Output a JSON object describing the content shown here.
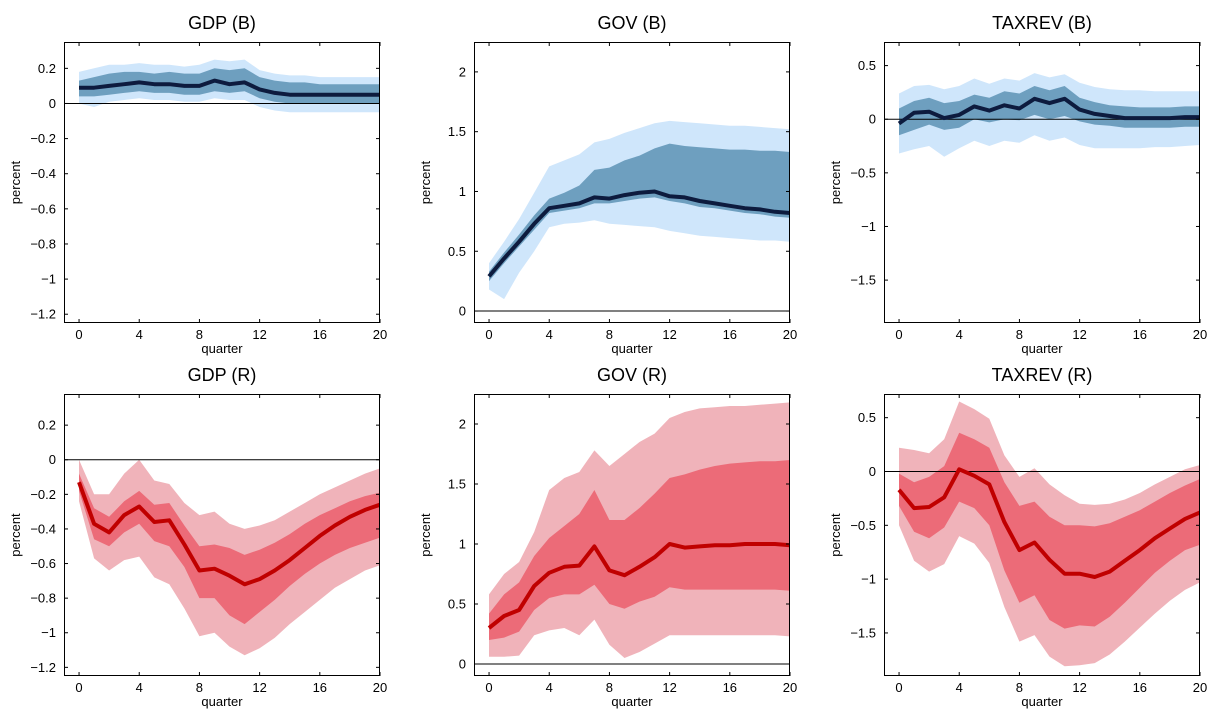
{
  "colors": {
    "blue_outer": "#cfe6fb",
    "blue_inner": "#6e9fbf",
    "blue_line": "#0d1b3e",
    "red_outer": "#f0b3ba",
    "red_inner": "#ec6b78",
    "red_line": "#c00000"
  },
  "chart_data": [
    {
      "type": "line",
      "title": "GDP (B)",
      "xlabel": "quarter",
      "ylabel": "percent",
      "xlim": [
        -1,
        20
      ],
      "ylim": [
        -1.25,
        0.35
      ],
      "xticks": [
        0,
        4,
        8,
        12,
        16,
        20
      ],
      "yticks": [
        -1.2,
        -1,
        -0.8,
        -0.6,
        -0.4,
        -0.2,
        0,
        0.2
      ],
      "ytick_labels": [
        "−1.2",
        "−1",
        "−0.8",
        "−0.6",
        "−0.4",
        "−0.2",
        "0",
        "0.2"
      ],
      "scheme": "blue",
      "x": [
        0,
        1,
        2,
        3,
        4,
        5,
        6,
        7,
        8,
        9,
        10,
        11,
        12,
        13,
        14,
        15,
        16,
        17,
        18,
        19,
        20
      ],
      "median": [
        0.09,
        0.09,
        0.1,
        0.11,
        0.12,
        0.11,
        0.11,
        0.1,
        0.1,
        0.13,
        0.11,
        0.12,
        0.08,
        0.06,
        0.05,
        0.05,
        0.05,
        0.05,
        0.05,
        0.05,
        0.05
      ],
      "inner_low": [
        0.04,
        0.04,
        0.05,
        0.06,
        0.07,
        0.06,
        0.06,
        0.05,
        0.05,
        0.07,
        0.06,
        0.07,
        0.03,
        0.01,
        0.0,
        0.0,
        0.0,
        0.0,
        0.0,
        0.0,
        0.0
      ],
      "inner_high": [
        0.13,
        0.15,
        0.17,
        0.18,
        0.18,
        0.17,
        0.18,
        0.17,
        0.17,
        0.2,
        0.19,
        0.2,
        0.15,
        0.13,
        0.12,
        0.12,
        0.11,
        0.11,
        0.11,
        0.11,
        0.11
      ],
      "outer_low": [
        0.0,
        -0.02,
        0.01,
        0.02,
        0.03,
        0.02,
        0.02,
        0.01,
        0.01,
        0.03,
        0.02,
        0.02,
        -0.02,
        -0.04,
        -0.05,
        -0.05,
        -0.05,
        -0.05,
        -0.05,
        -0.05,
        -0.05
      ],
      "outer_high": [
        0.18,
        0.2,
        0.22,
        0.22,
        0.23,
        0.22,
        0.22,
        0.21,
        0.22,
        0.25,
        0.24,
        0.25,
        0.19,
        0.17,
        0.16,
        0.16,
        0.15,
        0.15,
        0.15,
        0.15,
        0.15
      ]
    },
    {
      "type": "line",
      "title": "GOV (B)",
      "xlabel": "quarter",
      "ylabel": "percent",
      "xlim": [
        -1,
        20
      ],
      "ylim": [
        -0.1,
        2.25
      ],
      "xticks": [
        0,
        4,
        8,
        12,
        16,
        20
      ],
      "yticks": [
        0,
        0.5,
        1,
        1.5,
        2
      ],
      "ytick_labels": [
        "0",
        "0.5",
        "1",
        "1.5",
        "2"
      ],
      "scheme": "blue",
      "x": [
        0,
        1,
        2,
        3,
        4,
        5,
        6,
        7,
        8,
        9,
        10,
        11,
        12,
        13,
        14,
        15,
        16,
        17,
        18,
        19,
        20
      ],
      "median": [
        0.29,
        0.44,
        0.58,
        0.73,
        0.86,
        0.88,
        0.9,
        0.95,
        0.94,
        0.97,
        0.99,
        1.0,
        0.96,
        0.95,
        0.92,
        0.9,
        0.88,
        0.86,
        0.85,
        0.83,
        0.82
      ],
      "inner_low": [
        0.25,
        0.4,
        0.54,
        0.68,
        0.82,
        0.84,
        0.86,
        0.9,
        0.9,
        0.92,
        0.94,
        0.95,
        0.92,
        0.9,
        0.87,
        0.86,
        0.84,
        0.82,
        0.81,
        0.79,
        0.78
      ],
      "inner_high": [
        0.33,
        0.49,
        0.64,
        0.8,
        0.94,
        0.99,
        1.05,
        1.18,
        1.2,
        1.26,
        1.3,
        1.36,
        1.4,
        1.38,
        1.37,
        1.36,
        1.35,
        1.35,
        1.34,
        1.34,
        1.33
      ],
      "outer_low": [
        0.18,
        0.1,
        0.32,
        0.5,
        0.7,
        0.73,
        0.74,
        0.76,
        0.73,
        0.72,
        0.71,
        0.7,
        0.67,
        0.65,
        0.63,
        0.62,
        0.61,
        0.6,
        0.59,
        0.59,
        0.58
      ],
      "outer_high": [
        0.4,
        0.58,
        0.77,
        0.99,
        1.21,
        1.26,
        1.31,
        1.41,
        1.44,
        1.49,
        1.53,
        1.57,
        1.59,
        1.58,
        1.57,
        1.56,
        1.55,
        1.55,
        1.54,
        1.53,
        1.52
      ]
    },
    {
      "type": "line",
      "title": "TAXREV (B)",
      "xlabel": "quarter",
      "ylabel": "percent",
      "xlim": [
        -1,
        20
      ],
      "ylim": [
        -1.9,
        0.72
      ],
      "xticks": [
        0,
        4,
        8,
        12,
        16,
        20
      ],
      "yticks": [
        -1.5,
        -1,
        -0.5,
        0,
        0.5
      ],
      "ytick_labels": [
        "−1.5",
        "−1",
        "−0.5",
        "0",
        "0.5"
      ],
      "scheme": "blue",
      "x": [
        0,
        1,
        2,
        3,
        4,
        5,
        6,
        7,
        8,
        9,
        10,
        11,
        12,
        13,
        14,
        15,
        16,
        17,
        18,
        19,
        20
      ],
      "median": [
        -0.04,
        0.06,
        0.07,
        0.01,
        0.04,
        0.12,
        0.08,
        0.13,
        0.1,
        0.19,
        0.15,
        0.19,
        0.09,
        0.05,
        0.03,
        0.01,
        0.01,
        0.01,
        0.01,
        0.02,
        0.02
      ],
      "inner_low": [
        -0.15,
        -0.1,
        -0.05,
        -0.1,
        -0.08,
        0.0,
        -0.03,
        0.0,
        -0.01,
        0.04,
        0.0,
        0.03,
        -0.02,
        -0.05,
        -0.06,
        -0.08,
        -0.08,
        -0.08,
        -0.08,
        -0.07,
        -0.07
      ],
      "inner_high": [
        0.1,
        0.17,
        0.2,
        0.15,
        0.17,
        0.23,
        0.2,
        0.26,
        0.24,
        0.31,
        0.27,
        0.31,
        0.2,
        0.16,
        0.13,
        0.12,
        0.11,
        0.11,
        0.11,
        0.12,
        0.12
      ],
      "outer_low": [
        -0.32,
        -0.28,
        -0.25,
        -0.35,
        -0.27,
        -0.2,
        -0.25,
        -0.2,
        -0.22,
        -0.15,
        -0.2,
        -0.17,
        -0.24,
        -0.27,
        -0.27,
        -0.27,
        -0.27,
        -0.26,
        -0.26,
        -0.25,
        -0.24
      ],
      "outer_high": [
        0.24,
        0.31,
        0.32,
        0.28,
        0.31,
        0.38,
        0.33,
        0.38,
        0.36,
        0.43,
        0.39,
        0.42,
        0.34,
        0.3,
        0.28,
        0.27,
        0.27,
        0.26,
        0.26,
        0.26,
        0.26
      ]
    },
    {
      "type": "line",
      "title": "GDP (R)",
      "xlabel": "quarter",
      "ylabel": "percent",
      "xlim": [
        -1,
        20
      ],
      "ylim": [
        -1.25,
        0.38
      ],
      "xticks": [
        0,
        4,
        8,
        12,
        16,
        20
      ],
      "yticks": [
        -1.2,
        -1,
        -0.8,
        -0.6,
        -0.4,
        -0.2,
        0,
        0.2
      ],
      "ytick_labels": [
        "−1.2",
        "−1",
        "−0.8",
        "−0.6",
        "−0.4",
        "−0.2",
        "0",
        "0.2"
      ],
      "scheme": "red",
      "x": [
        0,
        1,
        2,
        3,
        4,
        5,
        6,
        7,
        8,
        9,
        10,
        11,
        12,
        13,
        14,
        15,
        16,
        17,
        18,
        19,
        20
      ],
      "median": [
        -0.13,
        -0.37,
        -0.42,
        -0.32,
        -0.27,
        -0.36,
        -0.35,
        -0.49,
        -0.64,
        -0.63,
        -0.67,
        -0.72,
        -0.69,
        -0.64,
        -0.58,
        -0.51,
        -0.44,
        -0.38,
        -0.33,
        -0.29,
        -0.26
      ],
      "inner_low": [
        -0.18,
        -0.46,
        -0.5,
        -0.42,
        -0.37,
        -0.47,
        -0.5,
        -0.62,
        -0.8,
        -0.8,
        -0.9,
        -0.95,
        -0.88,
        -0.81,
        -0.73,
        -0.66,
        -0.6,
        -0.55,
        -0.51,
        -0.48,
        -0.45
      ],
      "inner_high": [
        -0.08,
        -0.28,
        -0.33,
        -0.24,
        -0.18,
        -0.26,
        -0.25,
        -0.38,
        -0.5,
        -0.49,
        -0.51,
        -0.55,
        -0.52,
        -0.48,
        -0.43,
        -0.37,
        -0.32,
        -0.28,
        -0.24,
        -0.21,
        -0.19
      ],
      "outer_low": [
        -0.24,
        -0.57,
        -0.64,
        -0.58,
        -0.56,
        -0.68,
        -0.72,
        -0.86,
        -1.02,
        -1.0,
        -1.08,
        -1.13,
        -1.09,
        -1.03,
        -0.95,
        -0.88,
        -0.81,
        -0.74,
        -0.69,
        -0.64,
        -0.61
      ],
      "outer_high": [
        0.0,
        -0.2,
        -0.2,
        -0.08,
        0.0,
        -0.12,
        -0.14,
        -0.25,
        -0.32,
        -0.3,
        -0.37,
        -0.4,
        -0.38,
        -0.35,
        -0.3,
        -0.25,
        -0.2,
        -0.16,
        -0.12,
        -0.08,
        -0.05
      ]
    },
    {
      "type": "line",
      "title": "GOV (R)",
      "xlabel": "quarter",
      "ylabel": "percent",
      "xlim": [
        -1,
        20
      ],
      "ylim": [
        -0.1,
        2.25
      ],
      "xticks": [
        0,
        4,
        8,
        12,
        16,
        20
      ],
      "yticks": [
        0,
        0.5,
        1,
        1.5,
        2
      ],
      "ytick_labels": [
        "0",
        "0.5",
        "1",
        "1.5",
        "2"
      ],
      "scheme": "red",
      "x": [
        0,
        1,
        2,
        3,
        4,
        5,
        6,
        7,
        8,
        9,
        10,
        11,
        12,
        13,
        14,
        15,
        16,
        17,
        18,
        19,
        20
      ],
      "median": [
        0.3,
        0.4,
        0.45,
        0.65,
        0.76,
        0.81,
        0.82,
        0.98,
        0.78,
        0.74,
        0.81,
        0.89,
        1.0,
        0.97,
        0.98,
        0.99,
        0.99,
        1.0,
        1.0,
        1.0,
        0.99
      ],
      "inner_low": [
        0.2,
        0.22,
        0.27,
        0.45,
        0.55,
        0.58,
        0.58,
        0.66,
        0.5,
        0.46,
        0.52,
        0.56,
        0.64,
        0.62,
        0.62,
        0.62,
        0.62,
        0.62,
        0.62,
        0.62,
        0.61
      ],
      "inner_high": [
        0.42,
        0.58,
        0.68,
        0.9,
        1.05,
        1.15,
        1.25,
        1.45,
        1.2,
        1.2,
        1.3,
        1.42,
        1.55,
        1.58,
        1.62,
        1.65,
        1.67,
        1.68,
        1.69,
        1.69,
        1.7
      ],
      "outer_low": [
        0.06,
        0.06,
        0.07,
        0.24,
        0.28,
        0.3,
        0.24,
        0.37,
        0.16,
        0.05,
        0.1,
        0.17,
        0.24,
        0.24,
        0.24,
        0.24,
        0.24,
        0.24,
        0.24,
        0.24,
        0.23
      ],
      "outer_high": [
        0.58,
        0.75,
        0.85,
        1.1,
        1.45,
        1.55,
        1.6,
        1.78,
        1.65,
        1.75,
        1.85,
        1.92,
        2.05,
        2.1,
        2.13,
        2.14,
        2.15,
        2.15,
        2.16,
        2.17,
        2.18
      ]
    },
    {
      "type": "line",
      "title": "TAXREV (R)",
      "xlabel": "quarter",
      "ylabel": "percent",
      "xlim": [
        -1,
        20
      ],
      "ylim": [
        -1.9,
        0.72
      ],
      "xticks": [
        0,
        4,
        8,
        12,
        16,
        20
      ],
      "yticks": [
        -1.5,
        -1,
        -0.5,
        0,
        0.5
      ],
      "ytick_labels": [
        "−1.5",
        "−1",
        "−0.5",
        "0",
        "0.5"
      ],
      "scheme": "red",
      "x": [
        0,
        1,
        2,
        3,
        4,
        5,
        6,
        7,
        8,
        9,
        10,
        11,
        12,
        13,
        14,
        15,
        16,
        17,
        18,
        19,
        20
      ],
      "median": [
        -0.17,
        -0.34,
        -0.33,
        -0.24,
        0.02,
        -0.04,
        -0.12,
        -0.47,
        -0.73,
        -0.66,
        -0.82,
        -0.95,
        -0.95,
        -0.98,
        -0.93,
        -0.83,
        -0.73,
        -0.62,
        -0.53,
        -0.44,
        -0.38
      ],
      "inner_low": [
        -0.32,
        -0.56,
        -0.62,
        -0.52,
        -0.28,
        -0.34,
        -0.5,
        -0.92,
        -1.22,
        -1.15,
        -1.38,
        -1.46,
        -1.43,
        -1.44,
        -1.35,
        -1.22,
        -1.08,
        -0.94,
        -0.83,
        -0.73,
        -0.68
      ],
      "inner_high": [
        -0.02,
        -0.1,
        -0.05,
        0.05,
        0.36,
        0.3,
        0.22,
        -0.1,
        -0.32,
        -0.28,
        -0.42,
        -0.5,
        -0.5,
        -0.51,
        -0.48,
        -0.42,
        -0.36,
        -0.28,
        -0.2,
        -0.13,
        -0.07
      ],
      "outer_low": [
        -0.5,
        -0.83,
        -0.93,
        -0.86,
        -0.6,
        -0.67,
        -0.85,
        -1.26,
        -1.58,
        -1.52,
        -1.72,
        -1.81,
        -1.8,
        -1.78,
        -1.7,
        -1.58,
        -1.45,
        -1.32,
        -1.2,
        -1.1,
        -1.03
      ],
      "outer_high": [
        0.22,
        0.2,
        0.17,
        0.3,
        0.65,
        0.58,
        0.49,
        0.15,
        -0.05,
        0.03,
        -0.12,
        -0.22,
        -0.3,
        -0.31,
        -0.3,
        -0.26,
        -0.2,
        -0.12,
        -0.05,
        0.02,
        0.06
      ]
    }
  ]
}
